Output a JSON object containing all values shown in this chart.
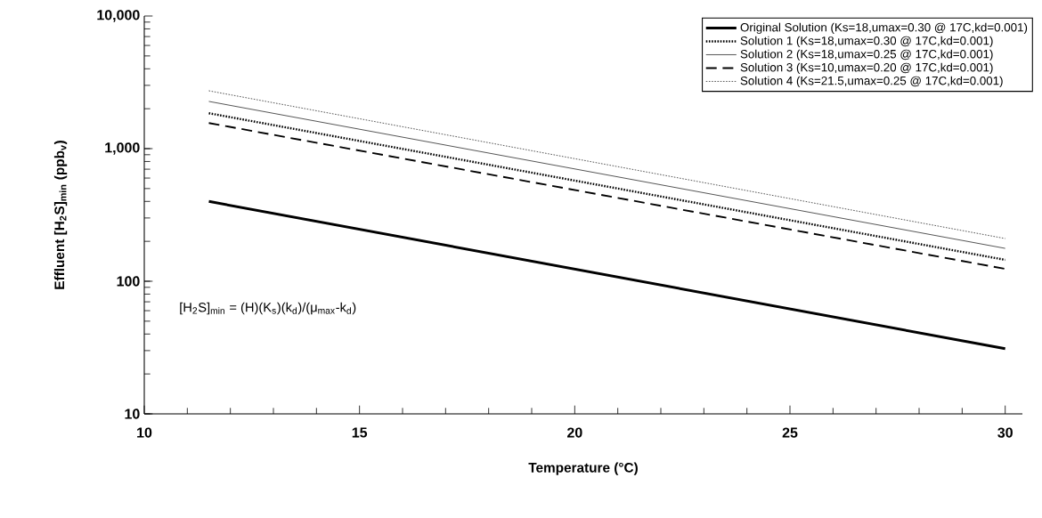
{
  "chart_data": {
    "type": "line",
    "xlabel": "Temperature (°C)",
    "ylabel": "Effluent [H$_{2}$S]$_{min}$ (ppb$_{v}$)",
    "log": "y",
    "xlim": [
      10,
      30.4
    ],
    "ylim": [
      10,
      10000
    ],
    "xticks": [
      10,
      15,
      20,
      25,
      30
    ],
    "yticks": [
      10,
      100,
      {
        "value": 1000,
        "label": "1,000"
      },
      {
        "value": 10000,
        "label": "10,000"
      }
    ],
    "legend": "top right",
    "annotations": [
      "[H$_{2}$S]$_{min}$ = (H)(K$_{s}$)(k$_{d}$)/(μ$_{max}$-k$_{d}$)"
    ],
    "x": [
      11.5,
      30
    ],
    "series": [
      {
        "name": "Original Solution (Ks=18,umax=0.30 @ 17C,kd=0.001)",
        "color": "#000000",
        "line_style": "solid",
        "values": [
          400,
          31
        ]
      },
      {
        "name": "Solution 1 (Ks=18,umax=0.30 @ 17C,kd=0.001)",
        "color": "#000000",
        "line_style": "dotted",
        "values": [
          1850,
          145
        ]
      },
      {
        "name": "Solution 2 (Ks=18,umax=0.25 @ 17C,kd=0.001)",
        "color": "#000000",
        "line_style": "solid",
        "values": [
          2270,
          177
        ]
      },
      {
        "name": "Solution 3 (Ks=10,umax=0.20 @ 17C,kd=0.001)",
        "color": "#000000",
        "line_style": "dashed",
        "values": [
          1560,
          124
        ]
      },
      {
        "name": "Solution 4 (Ks=21.5,umax=0.25 @ 17C,kd=0.001)",
        "color": "#000000",
        "line_style": "dotted",
        "values": [
          2730,
          210
        ]
      }
    ]
  }
}
